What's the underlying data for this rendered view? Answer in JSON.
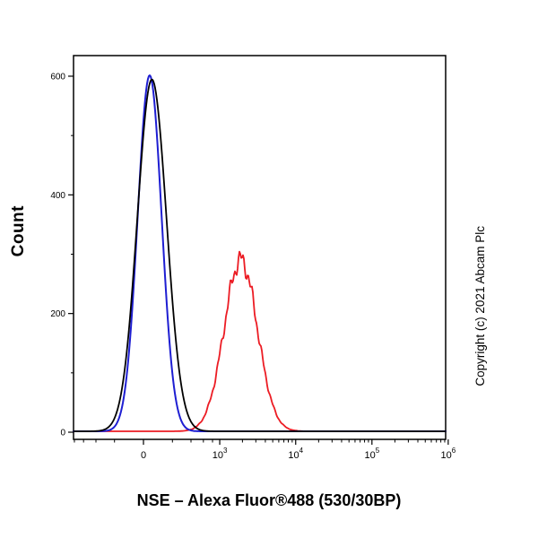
{
  "figure": {
    "title": "NSE – Alexa Fluor®488 (530/30BP)",
    "watermark": "Copyright (c) 2021 Abcam Plc"
  },
  "chart_data": {
    "type": "line",
    "subtype": "flow-cytometry-histogram-overlay",
    "title": "NSE – Alexa Fluor®488 (530/30BP)",
    "xlabel": "NSE – Alexa Fluor®488 (530/30BP)",
    "ylabel": "Count",
    "grid": false,
    "legend_position": "none",
    "x_scale": "biexponential (asinh): linear around 0, log decades to 10^6",
    "xlim": [
      -900,
      1000000
    ],
    "ylim": [
      0,
      635
    ],
    "y_ticks": [
      {
        "v": 0,
        "label": "0"
      },
      {
        "v": 200,
        "label": "200"
      },
      {
        "v": 400,
        "label": "400"
      },
      {
        "v": 600,
        "label": "600"
      }
    ],
    "y_minor_ticks": [
      100,
      300,
      500
    ],
    "x_ticks": [
      {
        "v": 0,
        "label": "0"
      },
      {
        "v": 1000,
        "base": "10",
        "exp": "3"
      },
      {
        "v": 10000,
        "base": "10",
        "exp": "4"
      },
      {
        "v": 100000,
        "base": "10",
        "exp": "5"
      },
      {
        "v": 1000000,
        "base": "10",
        "exp": "6"
      }
    ],
    "x_minor_ticks": [
      -800,
      -600,
      -400,
      -200,
      200,
      400,
      600,
      800,
      2000,
      3000,
      4000,
      5000,
      6000,
      7000,
      8000,
      9000,
      20000,
      30000,
      40000,
      50000,
      60000,
      70000,
      80000,
      90000,
      200000,
      300000,
      400000,
      500000,
      600000,
      700000,
      800000,
      900000
    ],
    "series": [
      {
        "name": "black-control-curve",
        "color": "#000000",
        "width": 1.8,
        "peak_x": 52,
        "peak_count": 593,
        "sigma_u": 0.44,
        "baseline": 1.5,
        "noisy": false
      },
      {
        "name": "blue-control-curve",
        "color": "#1e1ed2",
        "width": 2.0,
        "peak_x": 38,
        "peak_count": 600,
        "sigma_u": 0.36,
        "baseline": 1.5,
        "noisy": false
      },
      {
        "name": "red-nse-stained-curve",
        "color": "#ec1c24",
        "width": 1.8,
        "peak_x": 1900,
        "peak_count": 289,
        "sigma_u": 0.5,
        "baseline": 1.5,
        "noisy": true
      }
    ]
  }
}
